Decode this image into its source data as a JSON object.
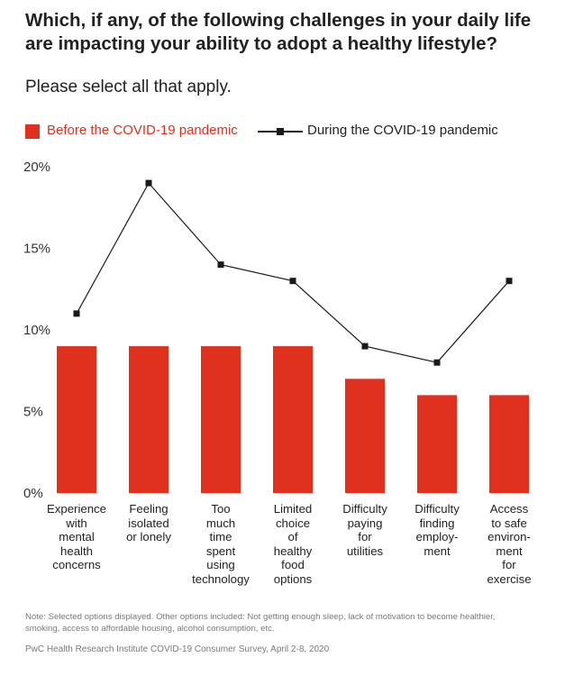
{
  "header": {
    "title": "Which, if any, of the following challenges in your daily life are impacting your ability to adopt a healthy lifestyle?",
    "subtitle": "Please select all that apply."
  },
  "legend": {
    "bar_label": "Before the COVID-19 pandemic",
    "line_label": "During the COVID-19 pandemic"
  },
  "colors": {
    "bar": "#e0301e",
    "line": "#1a1a1a"
  },
  "chart_data": {
    "type": "bar",
    "categories": [
      "Experience\nwith\nmental\nhealth\nconcerns",
      "Feeling\nisolated\nor lonely",
      "Too\nmuch\ntime\nspent\nusing\ntechnology",
      "Limited\nchoice\nof\nhealthy\nfood\noptions",
      "Difficulty\npaying\nfor\nutilities",
      "Difficulty\nfinding\nemploy-\nment",
      "Access\nto safe\nenviron-\nment\nfor\nexercise"
    ],
    "series": [
      {
        "name": "Before the COVID-19 pandemic",
        "type": "bar",
        "values": [
          9,
          9,
          9,
          9,
          7,
          6,
          6
        ]
      },
      {
        "name": "During the COVID-19 pandemic",
        "type": "line",
        "values": [
          11,
          19,
          14,
          13,
          9,
          8,
          13
        ]
      }
    ],
    "yticks": [
      "0%",
      "5%",
      "10%",
      "15%",
      "20%"
    ],
    "ylim": [
      0,
      20
    ],
    "grid": false,
    "legend_position": "top-left"
  },
  "footer": {
    "note": "Note: Selected options displayed. Other options included: Not getting enough sleep, lack of motivation to become healthier, smoking, access to affordable housing, alcohol consumption, etc.",
    "source": "PwC Health Research Institute COVID-19 Consumer Survey, April 2-8, 2020"
  }
}
